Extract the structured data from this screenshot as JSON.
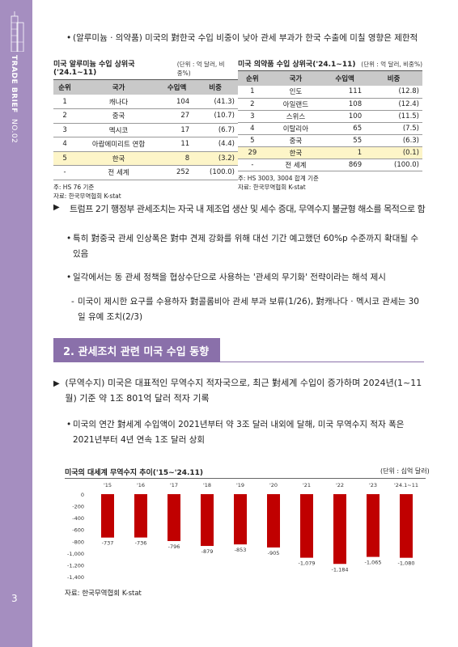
{
  "sidebar": {
    "brand": "TRADE BRIEF",
    "issue": "NO.02",
    "page_number": "3"
  },
  "top_bullet": "(알루미늄 · 의약품) 미국의 對한국 수입 비중이 낮아 관세 부과가 한국 수출에 미칠 영향은 제한적",
  "table_left": {
    "title": "미국 알루미늄 수입 상위국('24.1~11)",
    "unit": "(단위 : 억 달러, 비중%)",
    "headers": [
      "순위",
      "국가",
      "수입액",
      "비중"
    ],
    "rows": [
      [
        "1",
        "캐나다",
        "104",
        "(41.3)"
      ],
      [
        "2",
        "중국",
        "27",
        "(10.7)"
      ],
      [
        "3",
        "멕시코",
        "17",
        "(6.7)"
      ],
      [
        "4",
        "아랍에미리트 연합",
        "11",
        "(4.4)"
      ],
      [
        "5",
        "한국",
        "8",
        "(3.2)"
      ],
      [
        "-",
        "전 세계",
        "252",
        "(100.0)"
      ]
    ],
    "note1": "주: HS 76 기준",
    "note2": "자료: 한국무역협회 K-stat"
  },
  "table_right": {
    "title": "미국 의약품 수입 상위국('24.1~11)",
    "unit": "(단위 : 억 달러, 비중%)",
    "headers": [
      "순위",
      "국가",
      "수입액",
      "비중"
    ],
    "rows": [
      [
        "1",
        "인도",
        "111",
        "(12.8)"
      ],
      [
        "2",
        "아일랜드",
        "108",
        "(12.4)"
      ],
      [
        "3",
        "스위스",
        "100",
        "(11.5)"
      ],
      [
        "4",
        "이탈리아",
        "65",
        "(7.5)"
      ],
      [
        "5",
        "중국",
        "55",
        "(6.3)"
      ],
      [
        "29",
        "한국",
        "1",
        "(0.1)"
      ],
      [
        "-",
        "전 세계",
        "869",
        "(100.0)"
      ]
    ],
    "note1": "주: HS 3003, 3004 합계 기준",
    "note2": "자료: 한국무역협회 K-stat"
  },
  "para1": "트럼프 2기 행정부 관세조치는 자국 내 제조업 생산 및 세수 증대, 무역수지 불균형 해소를 목적으로 함",
  "para1_b1": "특히 對중국 관세 인상폭은 對中 견제 강화를 위해 대선 기간 예고했던 60%p 수준까지 확대될 수 있음",
  "para1_b2": "일각에서는 동 관세 정책을 협상수단으로 사용하는 '관세의 무기화' 전략이라는 해석 제시",
  "para1_d1": "미국이 제시한 요구를 수용하자 對콜롬비아 관세 부과 보류(1/26), 對캐나다 · 멕시코 관세는 30일 유예 조치(2/3)",
  "section_title": "2. 관세조치 관련 미국 수입 동향",
  "para2": "(무역수지) 미국은 대표적인 무역수지 적자국으로, 최근 對세계 수입이 증가하며 2024년(1~11월) 기준 약 1조 801억 달러 적자 기록",
  "para2_b1": "미국의 연간 對세계 수입액이 2021년부터 약 3조 달러 내외에 달해, 미국 무역수지 적자 폭은 2021년부터 4년 연속 1조 달러 상회",
  "chart_title": "미국의 대세계 무역수지 추이('15~'24.11)",
  "chart_unit": "(단위 : 십억 달러)",
  "chart_source": "자료: 한국무역협회 K-stat",
  "chart_data": {
    "type": "bar",
    "categories": [
      "'15",
      "'16",
      "'17",
      "'18",
      "'19",
      "'20",
      "'21",
      "'22",
      "'23",
      "'24.1~11"
    ],
    "values": [
      -737,
      -736,
      -796,
      -879,
      -853,
      -905,
      -1079,
      -1184,
      -1065,
      -1080
    ],
    "value_labels": [
      "-737",
      "-736",
      "-796",
      "-879",
      "-853",
      "-905",
      "-1,079",
      "-1,184",
      "-1,065",
      "-1,080"
    ],
    "y_ticks": [
      "0",
      "-200",
      "-400",
      "-600",
      "-800",
      "-1,000",
      "-1,200",
      "-1,400"
    ],
    "ylim": [
      -1400,
      0
    ],
    "color": "#c00000"
  }
}
